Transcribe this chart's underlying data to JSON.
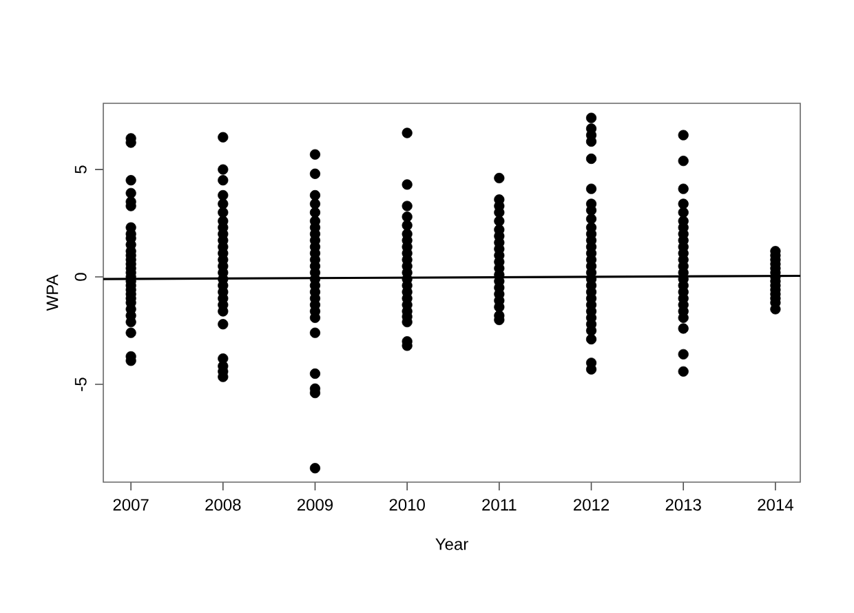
{
  "chart_data": {
    "type": "scatter",
    "xlabel": "Year",
    "ylabel": "WPA",
    "xlim": [
      2006.7,
      2014.27
    ],
    "ylim": [
      -9.55,
      8.08
    ],
    "xticks": [
      2007,
      2008,
      2009,
      2010,
      2011,
      2012,
      2013,
      2014
    ],
    "yticks": [
      -5,
      0,
      5
    ],
    "series": [
      {
        "marker": "circle",
        "color": "#000000",
        "x": [
          2007,
          2007,
          2007,
          2007,
          2007,
          2007,
          2007,
          2007,
          2007,
          2007,
          2007,
          2007,
          2007,
          2007,
          2007,
          2007,
          2007,
          2007,
          2007,
          2007,
          2007,
          2007,
          2007,
          2007,
          2007,
          2007,
          2007,
          2007,
          2007
        ],
        "values": [
          6.45,
          6.25,
          4.5,
          3.9,
          3.5,
          3.3,
          2.3,
          2.0,
          1.8,
          1.5,
          1.2,
          1.0,
          0.8,
          0.6,
          0.4,
          0.2,
          0,
          -0.2,
          -0.4,
          -0.6,
          -0.8,
          -1.0,
          -1.2,
          -1.5,
          -1.8,
          -2.1,
          -2.6,
          -3.7,
          -3.9
        ]
      },
      {
        "marker": "circle",
        "color": "#000000",
        "x": [
          2008,
          2008,
          2008,
          2008,
          2008,
          2008,
          2008,
          2008,
          2008,
          2008,
          2008,
          2008,
          2008,
          2008,
          2008,
          2008,
          2008,
          2008,
          2008,
          2008,
          2008,
          2008,
          2008,
          2008,
          2008,
          2008
        ],
        "values": [
          6.5,
          5.0,
          4.5,
          3.8,
          3.4,
          3.0,
          2.6,
          2.3,
          2.0,
          1.7,
          1.4,
          1.1,
          0.8,
          0.5,
          0.2,
          -0.1,
          -0.4,
          -0.7,
          -1.0,
          -1.3,
          -1.6,
          -2.2,
          -3.8,
          -4.15,
          -4.4,
          -4.65
        ]
      },
      {
        "marker": "circle",
        "color": "#000000",
        "x": [
          2009,
          2009,
          2009,
          2009,
          2009,
          2009,
          2009,
          2009,
          2009,
          2009,
          2009,
          2009,
          2009,
          2009,
          2009,
          2009,
          2009,
          2009,
          2009,
          2009,
          2009,
          2009,
          2009,
          2009,
          2009,
          2009
        ],
        "values": [
          5.7,
          4.8,
          3.8,
          3.4,
          3.0,
          2.6,
          2.3,
          2.0,
          1.7,
          1.4,
          1.1,
          0.8,
          0.5,
          0.2,
          -0.1,
          -0.4,
          -0.7,
          -1.0,
          -1.3,
          -1.6,
          -1.9,
          -2.6,
          -4.5,
          -5.2,
          -5.4,
          -8.9
        ]
      },
      {
        "marker": "circle",
        "color": "#000000",
        "x": [
          2010,
          2010,
          2010,
          2010,
          2010,
          2010,
          2010,
          2010,
          2010,
          2010,
          2010,
          2010,
          2010,
          2010,
          2010,
          2010,
          2010,
          2010,
          2010,
          2010,
          2010,
          2010
        ],
        "values": [
          6.7,
          4.3,
          3.3,
          2.8,
          2.4,
          2.0,
          1.7,
          1.4,
          1.1,
          0.8,
          0.5,
          0.2,
          -0.1,
          -0.4,
          -0.7,
          -1.0,
          -1.3,
          -1.6,
          -1.85,
          -2.1,
          -3.0,
          -3.2
        ]
      },
      {
        "marker": "circle",
        "color": "#000000",
        "x": [
          2011,
          2011,
          2011,
          2011,
          2011,
          2011,
          2011,
          2011,
          2011,
          2011,
          2011,
          2011,
          2011,
          2011,
          2011,
          2011,
          2011,
          2011,
          2011,
          2011
        ],
        "values": [
          4.6,
          3.6,
          3.3,
          3.0,
          2.6,
          2.2,
          1.9,
          1.6,
          1.3,
          1.0,
          0.7,
          0.4,
          0.1,
          -0.2,
          -0.5,
          -0.8,
          -1.1,
          -1.4,
          -1.8,
          -2.0
        ]
      },
      {
        "marker": "circle",
        "color": "#000000",
        "x": [
          2012,
          2012,
          2012,
          2012,
          2012,
          2012,
          2012,
          2012,
          2012,
          2012,
          2012,
          2012,
          2012,
          2012,
          2012,
          2012,
          2012,
          2012,
          2012,
          2012,
          2012,
          2012,
          2012,
          2012,
          2012,
          2012,
          2012,
          2012,
          2012
        ],
        "values": [
          7.4,
          6.9,
          6.6,
          6.3,
          5.5,
          4.1,
          3.4,
          3.1,
          2.7,
          2.3,
          2.0,
          1.7,
          1.4,
          1.1,
          0.8,
          0.5,
          0.2,
          -0.1,
          -0.4,
          -0.7,
          -1.0,
          -1.3,
          -1.6,
          -1.9,
          -2.2,
          -2.5,
          -2.9,
          -4.0,
          -4.3
        ]
      },
      {
        "marker": "circle",
        "color": "#000000",
        "x": [
          2013,
          2013,
          2013,
          2013,
          2013,
          2013,
          2013,
          2013,
          2013,
          2013,
          2013,
          2013,
          2013,
          2013,
          2013,
          2013,
          2013,
          2013,
          2013,
          2013,
          2013,
          2013,
          2013,
          2013
        ],
        "values": [
          6.6,
          5.4,
          4.1,
          3.4,
          3.0,
          2.6,
          2.3,
          2.0,
          1.7,
          1.4,
          1.1,
          0.8,
          0.5,
          0.2,
          -0.1,
          -0.4,
          -0.7,
          -1.0,
          -1.3,
          -1.6,
          -1.9,
          -2.4,
          -3.6,
          -4.4
        ]
      },
      {
        "marker": "circle",
        "color": "#000000",
        "x": [
          2014,
          2014,
          2014,
          2014,
          2014,
          2014,
          2014,
          2014,
          2014,
          2014,
          2014,
          2014,
          2014,
          2014
        ],
        "values": [
          1.2,
          1.0,
          0.8,
          0.6,
          0.4,
          0.2,
          0,
          -0.2,
          -0.4,
          -0.6,
          -0.8,
          -1.0,
          -1.2,
          -1.5
        ]
      },
      {
        "type": "line",
        "color": "#000000",
        "x": [
          2006.7,
          2014.27
        ],
        "values": [
          -0.1,
          0.05
        ]
      }
    ]
  }
}
